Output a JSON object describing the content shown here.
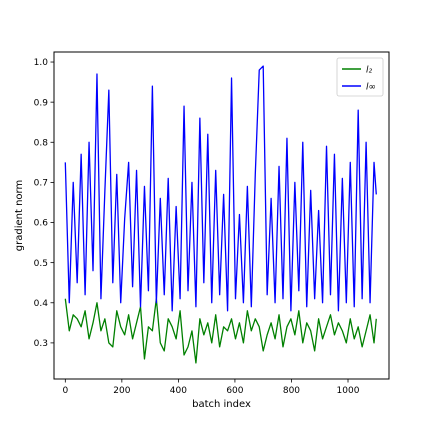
{
  "chart_data": {
    "type": "line",
    "xlabel": "batch index",
    "ylabel": "gradient norm",
    "xlim": [
      -40,
      1145
    ],
    "ylim": [
      0.21,
      1.025
    ],
    "x_ticks": [
      0,
      200,
      400,
      600,
      800,
      1000
    ],
    "y_ticks": [
      0.3,
      0.4,
      0.5,
      0.6,
      0.7,
      0.8,
      0.9,
      1.0
    ],
    "x_tick_labels": [
      "0",
      "200",
      "400",
      "600",
      "800",
      "1000"
    ],
    "y_tick_labels": [
      "0.3",
      "0.4",
      "0.5",
      "0.6",
      "0.7",
      "0.8",
      "0.9",
      "1.0"
    ],
    "grid": false,
    "legend_position": "top-right",
    "x": [
      0,
      14,
      28,
      42,
      56,
      70,
      84,
      98,
      112,
      126,
      140,
      154,
      168,
      182,
      196,
      210,
      224,
      238,
      252,
      266,
      280,
      294,
      308,
      322,
      336,
      350,
      364,
      378,
      392,
      406,
      420,
      434,
      448,
      462,
      476,
      490,
      504,
      518,
      532,
      546,
      560,
      574,
      588,
      602,
      616,
      630,
      644,
      658,
      672,
      686,
      700,
      714,
      728,
      742,
      756,
      770,
      784,
      798,
      812,
      826,
      840,
      854,
      868,
      882,
      896,
      910,
      924,
      938,
      952,
      966,
      980,
      994,
      1008,
      1022,
      1036,
      1050,
      1064,
      1078,
      1092,
      1100
    ],
    "series": [
      {
        "name": "l₂",
        "color": "#008000",
        "values": [
          0.41,
          0.33,
          0.37,
          0.36,
          0.34,
          0.38,
          0.31,
          0.35,
          0.4,
          0.33,
          0.36,
          0.3,
          0.29,
          0.38,
          0.34,
          0.32,
          0.37,
          0.31,
          0.35,
          0.39,
          0.26,
          0.34,
          0.33,
          0.41,
          0.3,
          0.28,
          0.36,
          0.34,
          0.31,
          0.38,
          0.27,
          0.29,
          0.33,
          0.25,
          0.36,
          0.32,
          0.35,
          0.3,
          0.37,
          0.29,
          0.34,
          0.33,
          0.36,
          0.31,
          0.35,
          0.3,
          0.38,
          0.33,
          0.36,
          0.34,
          0.28,
          0.32,
          0.35,
          0.31,
          0.37,
          0.29,
          0.34,
          0.36,
          0.32,
          0.38,
          0.3,
          0.35,
          0.33,
          0.28,
          0.36,
          0.31,
          0.34,
          0.37,
          0.32,
          0.35,
          0.33,
          0.3,
          0.36,
          0.31,
          0.34,
          0.29,
          0.33,
          0.37,
          0.3,
          0.36
        ]
      },
      {
        "name": "l∞",
        "color": "#0000ff",
        "values": [
          0.75,
          0.4,
          0.7,
          0.45,
          0.77,
          0.42,
          0.8,
          0.48,
          0.97,
          0.41,
          0.68,
          0.93,
          0.45,
          0.72,
          0.4,
          0.61,
          0.75,
          0.44,
          0.73,
          0.39,
          0.69,
          0.43,
          0.94,
          0.4,
          0.66,
          0.42,
          0.71,
          0.38,
          0.64,
          0.41,
          0.89,
          0.43,
          0.7,
          0.39,
          0.86,
          0.45,
          0.82,
          0.4,
          0.73,
          0.42,
          0.67,
          0.38,
          0.96,
          0.41,
          0.62,
          0.4,
          0.69,
          0.39,
          0.72,
          0.98,
          0.99,
          0.42,
          0.66,
          0.4,
          0.74,
          0.41,
          0.81,
          0.38,
          0.7,
          0.43,
          0.8,
          0.39,
          0.68,
          0.41,
          0.63,
          0.4,
          0.79,
          0.42,
          0.77,
          0.38,
          0.71,
          0.4,
          0.75,
          0.39,
          0.88,
          0.41,
          0.8,
          0.4,
          0.75,
          0.67
        ]
      }
    ]
  }
}
